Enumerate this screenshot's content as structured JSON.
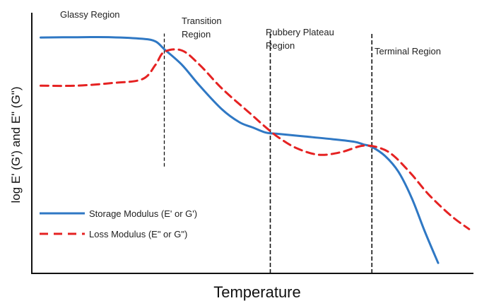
{
  "chart_data": {
    "type": "line",
    "xlabel": "Temperature",
    "ylabel": "log E' (G') and E\" (G\")",
    "xlim": [
      0,
      100
    ],
    "ylim": [
      0,
      100
    ],
    "grid": false,
    "legend_position": "bottom-left",
    "regions": [
      {
        "label": "Glassy Region",
        "x_start": 0
      },
      {
        "label": "Transition Region",
        "x_start": 30
      },
      {
        "label": "Rubbery Plateau Region",
        "x_start": 54
      },
      {
        "label": "Terminal Region",
        "x_start": 77
      }
    ],
    "dividers": [
      {
        "x": 30,
        "y_from": 41,
        "y_to": 92
      },
      {
        "x": 54,
        "y_from": 0,
        "y_to": 92
      },
      {
        "x": 77,
        "y_from": 0,
        "y_to": 92
      }
    ],
    "series": [
      {
        "name": "Storage Modulus (E' or G')",
        "color": "#2f78c4",
        "dash": "solid",
        "points": [
          [
            2,
            90.5
          ],
          [
            10,
            90.6
          ],
          [
            18,
            90.6
          ],
          [
            25,
            90.0
          ],
          [
            28,
            89.0
          ],
          [
            30,
            86.0
          ],
          [
            34,
            80.0
          ],
          [
            38,
            72.0
          ],
          [
            43,
            63.0
          ],
          [
            47,
            58.0
          ],
          [
            50,
            56.0
          ],
          [
            53,
            54.0
          ],
          [
            56,
            53.5
          ],
          [
            62,
            52.5
          ],
          [
            68,
            51.5
          ],
          [
            73,
            50.5
          ],
          [
            75,
            49.5
          ],
          [
            77,
            48.5
          ],
          [
            80,
            45.0
          ],
          [
            83,
            39.0
          ],
          [
            86,
            29.0
          ],
          [
            89,
            16.0
          ],
          [
            92,
            4.0
          ]
        ]
      },
      {
        "name": "Loss Modulus (E\" or G\")",
        "color": "#e52222",
        "dash": "dashed",
        "points": [
          [
            2,
            72.0
          ],
          [
            10,
            72.0
          ],
          [
            18,
            73.0
          ],
          [
            25,
            74.5
          ],
          [
            28,
            80.0
          ],
          [
            30,
            85.0
          ],
          [
            34,
            85.5
          ],
          [
            38,
            80.0
          ],
          [
            43,
            71.0
          ],
          [
            49,
            62.0
          ],
          [
            53,
            56.0
          ],
          [
            56,
            52.0
          ],
          [
            60,
            48.0
          ],
          [
            65,
            45.5
          ],
          [
            70,
            46.5
          ],
          [
            75,
            49.0
          ],
          [
            79,
            48.0
          ],
          [
            82,
            45.0
          ],
          [
            86,
            38.0
          ],
          [
            90,
            30.0
          ],
          [
            95,
            22.0
          ],
          [
            99,
            17.0
          ]
        ]
      }
    ]
  }
}
